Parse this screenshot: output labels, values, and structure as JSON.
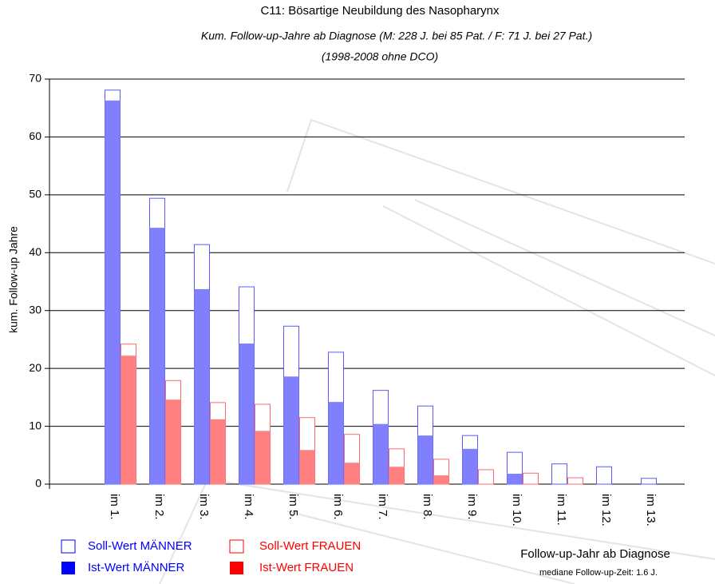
{
  "chart_data": {
    "type": "bar",
    "title": "C11: Bösartige Neubildung des Nasopharynx",
    "subtitle": [
      "Kum. Follow-up-Jahre ab Diagnose (M: 228 J. bei 85 Pat. / F:  71 J. bei   27 Pat.)",
      "(1998-2008 ohne DCO)"
    ],
    "ylabel": "kum. Follow-up Jahre",
    "xlabel": "Follow-up-Jahr ab Diagnose",
    "note": "mediane Follow-up-Zeit: 1.6 J.",
    "categories": [
      "im 1.",
      "im 2.",
      "im 3.",
      "im 4.",
      "im 5.",
      "im 6.",
      "im 7.",
      "im 8.",
      "im 9.",
      "im 10.",
      "im 11.",
      "im 12.",
      "im 13."
    ],
    "series": [
      {
        "name": "Soll-Wert MÄNNER",
        "color": "#5a5aff",
        "values": [
          68.1,
          49.4,
          41.4,
          34.1,
          27.3,
          22.8,
          16.2,
          13.5,
          8.4,
          5.5,
          3.5,
          3.0,
          1.0
        ]
      },
      {
        "name": "Ist-Wert MÄNNER",
        "color": "#8080ff",
        "values": [
          66.3,
          44.3,
          33.7,
          24.3,
          18.6,
          14.2,
          10.4,
          8.4,
          6.1,
          1.8,
          0,
          0,
          0
        ]
      },
      {
        "name": "Soll-Wert FRAUEN",
        "color": "#ff6a6a",
        "values": [
          24.2,
          17.9,
          14.1,
          13.8,
          11.5,
          8.6,
          6.1,
          4.3,
          2.5,
          1.9,
          1.1,
          0,
          0
        ]
      },
      {
        "name": "Ist-Wert FRAUEN",
        "color": "#ff8080",
        "values": [
          22.2,
          14.6,
          11.2,
          9.2,
          5.9,
          3.7,
          3.0,
          1.5,
          0,
          0,
          0,
          0,
          0
        ]
      }
    ],
    "ylim": [
      0,
      70
    ],
    "yticks": [
      0,
      10,
      20,
      30,
      40,
      50,
      60,
      70
    ],
    "grid": true
  }
}
